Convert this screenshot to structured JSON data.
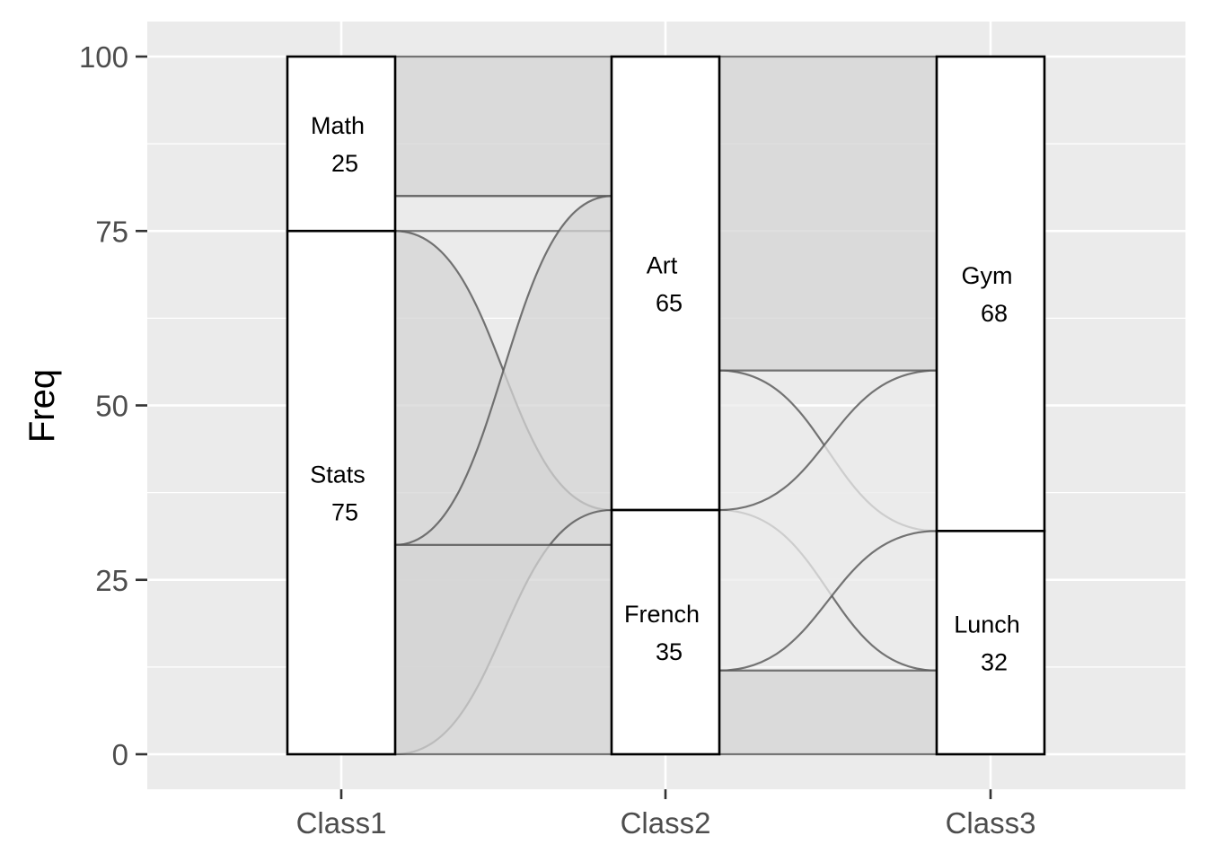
{
  "chart_data": {
    "type": "alluvial",
    "ylabel": "Freq",
    "xlabel": "",
    "ylim": [
      0,
      100
    ],
    "yticks": [
      0,
      25,
      50,
      75,
      100
    ],
    "axes": [
      "Class1",
      "Class2",
      "Class3"
    ],
    "strata": [
      [
        {
          "name": "Math",
          "value": 25
        },
        {
          "name": "Stats",
          "value": 75
        }
      ],
      [
        {
          "name": "Art",
          "value": 65
        },
        {
          "name": "French",
          "value": 35
        }
      ],
      [
        {
          "name": "Gym",
          "value": 68
        },
        {
          "name": "Lunch",
          "value": 32
        }
      ]
    ],
    "flows": [
      {
        "from_axis": 0,
        "from_range": [
          80,
          100
        ],
        "to_range": [
          80,
          100
        ],
        "fill": "#d4d4d4"
      },
      {
        "from_axis": 0,
        "from_range": [
          75,
          80
        ],
        "to_range": [
          75,
          80
        ],
        "fill": "#ebebeb"
      },
      {
        "from_axis": 0,
        "from_range": [
          30,
          75
        ],
        "to_range": [
          30,
          35
        ],
        "fill": "#d4d4d4"
      },
      {
        "from_axis": 0,
        "from_range": [
          0,
          30
        ],
        "to_range": [
          35,
          80
        ],
        "fill": "#d4d4d4"
      },
      {
        "from_axis": 0,
        "from_range": [
          0,
          30
        ],
        "to_range": [
          0,
          30
        ],
        "fill": "#d4d4d4"
      },
      {
        "from_axis": 1,
        "from_range": [
          55,
          100
        ],
        "to_range": [
          55,
          100
        ],
        "fill": "#d4d4d4"
      },
      {
        "from_axis": 1,
        "from_range": [
          35,
          55
        ],
        "to_range": [
          12,
          32
        ],
        "fill": "#ebebeb"
      },
      {
        "from_axis": 1,
        "from_range": [
          12,
          35
        ],
        "to_range": [
          32,
          55
        ],
        "fill": "#ebebeb"
      },
      {
        "from_axis": 1,
        "from_range": [
          0,
          12
        ],
        "to_range": [
          0,
          12
        ],
        "fill": "#d4d4d4"
      }
    ]
  }
}
